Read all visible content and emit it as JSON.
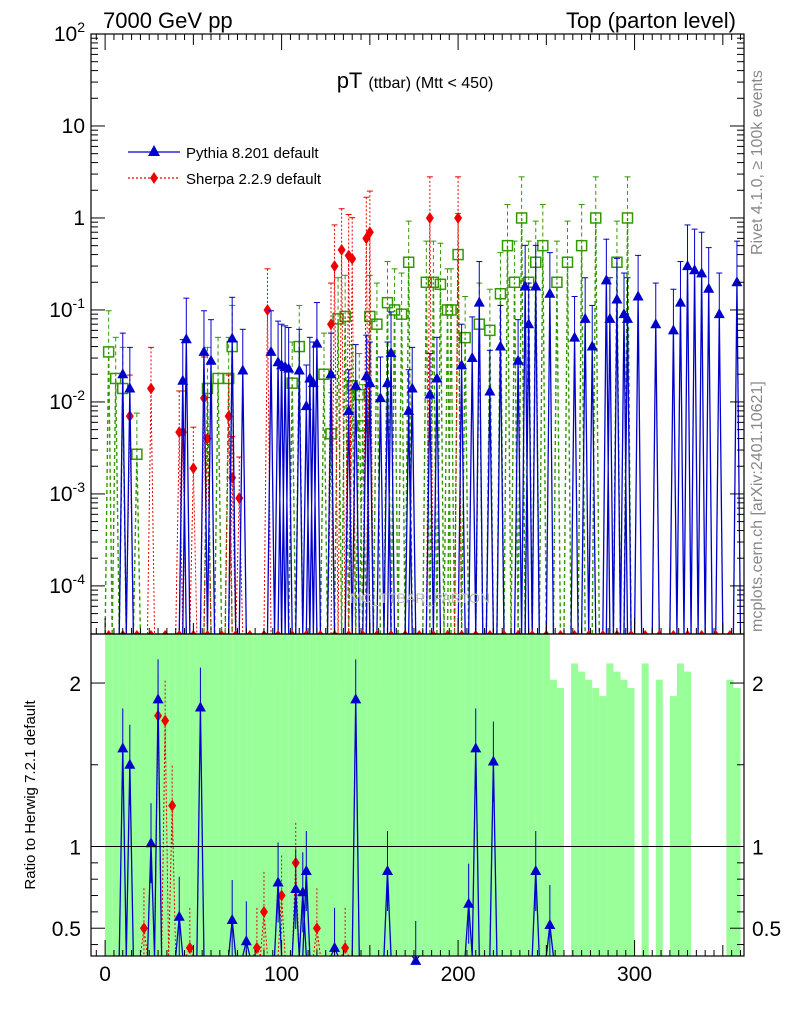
{
  "header": {
    "left": "7000 GeV pp",
    "right": "Top (parton level)"
  },
  "side_labels": {
    "rivet": "Rivet 4.1.0, ≥ 100k events",
    "mcplots": "mcplots.cern.ch [arXiv:2401.10621]"
  },
  "watermark": "MC_TTBAR_PARTON",
  "colors": {
    "pythia": "#0000cc",
    "sherpa": "#ee0000",
    "herwig": "#339900",
    "band_inner": "#99ff99",
    "band_outer": "#ffff88"
  },
  "chart_data": [
    {
      "type": "scatter",
      "panel": "main",
      "title": "pT",
      "title_sub": "(ttbar) (Mtt < 450)",
      "yscale": "log",
      "xlim": [
        -8,
        362
      ],
      "ylim": [
        3e-05,
        100
      ],
      "ytick_labels": [
        "10^-4",
        "10^-3",
        "10^-2",
        "10^-1",
        "1",
        "10",
        "10^2"
      ],
      "legend": [
        {
          "name": "Pythia 8.201 default",
          "marker": "triangle"
        },
        {
          "name": "Sherpa 2.2.9 default",
          "marker": "diamond"
        }
      ],
      "series": [
        {
          "name": "Pythia 8.201 default",
          "x": [
            10,
            14,
            44,
            46,
            56,
            60,
            72,
            78,
            94,
            98,
            100,
            102,
            104,
            110,
            114,
            116,
            118,
            120,
            128,
            138,
            142,
            148,
            150,
            156,
            160,
            162,
            172,
            174,
            184,
            188,
            202,
            208,
            212,
            218,
            224,
            234,
            238,
            240,
            244,
            252,
            266,
            272,
            276,
            284,
            286,
            290,
            294,
            296,
            302,
            312,
            322,
            326,
            330,
            334,
            338,
            342,
            348,
            358
          ],
          "y": [
            0.02,
            0.014,
            0.017,
            0.048,
            0.035,
            0.028,
            0.049,
            0.022,
            0.035,
            0.027,
            0.025,
            0.024,
            0.023,
            0.022,
            0.009,
            0.018,
            0.016,
            0.043,
            0.02,
            0.008,
            0.015,
            0.019,
            0.016,
            0.011,
            0.016,
            0.034,
            0.008,
            0.014,
            0.012,
            0.018,
            0.025,
            0.03,
            0.12,
            0.013,
            0.04,
            0.028,
            0.18,
            0.07,
            0.18,
            0.15,
            0.05,
            0.08,
            0.04,
            0.21,
            0.08,
            0.13,
            0.09,
            0.08,
            0.14,
            0.07,
            0.06,
            0.12,
            0.3,
            0.27,
            0.25,
            0.17,
            0.09,
            0.2
          ]
        },
        {
          "name": "Sherpa 2.2.9 default",
          "x": [
            14,
            26,
            42,
            44,
            50,
            56,
            58,
            70,
            72,
            76,
            92,
            128,
            130,
            134,
            138,
            140,
            148,
            150,
            184,
            200
          ],
          "y": [
            0.007,
            0.014,
            0.0047,
            0.0047,
            0.0019,
            0.011,
            0.004,
            0.007,
            0.0015,
            0.0009,
            0.1,
            0.07,
            0.3,
            0.45,
            0.39,
            0.36,
            0.6,
            0.7,
            1.0,
            1.0
          ]
        },
        {
          "name": "Herwig 7.2.1 default",
          "x": [
            2,
            6,
            10,
            18,
            58,
            64,
            70,
            72,
            106,
            110,
            124,
            128,
            132,
            136,
            140,
            144,
            146,
            150,
            154,
            160,
            164,
            168,
            172,
            182,
            186,
            190,
            194,
            196,
            200,
            204,
            212,
            218,
            224,
            228,
            232,
            236,
            240,
            244,
            248,
            256,
            262,
            270,
            278,
            290,
            296
          ],
          "y": [
            0.035,
            0.018,
            0.014,
            0.0027,
            0.014,
            0.018,
            0.018,
            0.04,
            0.016,
            0.04,
            0.02,
            0.0045,
            0.08,
            0.085,
            0.015,
            0.012,
            0.0055,
            0.085,
            0.07,
            0.12,
            0.1,
            0.09,
            0.33,
            0.2,
            0.2,
            0.19,
            0.1,
            0.1,
            0.4,
            0.05,
            0.07,
            0.06,
            0.15,
            0.5,
            0.2,
            1.0,
            0.2,
            0.33,
            0.5,
            0.2,
            0.33,
            0.5,
            1.0,
            0.33,
            1.0
          ]
        }
      ]
    },
    {
      "type": "scatter",
      "panel": "ratio",
      "ylabel": "Ratio to Herwig 7.2.1 default",
      "xlim": [
        -8,
        362
      ],
      "ylim": [
        0.33,
        2.3
      ],
      "yticks": [
        0.5,
        1,
        2
      ],
      "ytick_labels": [
        "0.5",
        "1",
        "2"
      ],
      "xticks": [
        0,
        100,
        200,
        300
      ],
      "xtick_labels": [
        "0",
        "100",
        "200",
        "300"
      ],
      "series": [
        {
          "name": "Pythia 8.201 default",
          "x": [
            10,
            14,
            26,
            30,
            42,
            54,
            72,
            80,
            98,
            108,
            112,
            114,
            130,
            142,
            160,
            176,
            206,
            210,
            220,
            244,
            252
          ],
          "y": [
            1.6,
            1.5,
            1.02,
            1.9,
            0.57,
            1.85,
            0.55,
            0.42,
            0.78,
            0.74,
            0.72,
            0.85,
            0.38,
            1.9,
            0.85,
            0.3,
            0.65,
            1.6,
            1.52,
            0.85,
            0.52
          ]
        },
        {
          "name": "Sherpa 2.2.9 default",
          "x": [
            22,
            30,
            34,
            38,
            48,
            86,
            90,
            100,
            108,
            120,
            136
          ],
          "y": [
            0.5,
            1.8,
            1.77,
            1.25,
            0.38,
            0.38,
            0.6,
            0.7,
            0.9,
            0.5,
            0.38
          ]
        }
      ]
    }
  ]
}
